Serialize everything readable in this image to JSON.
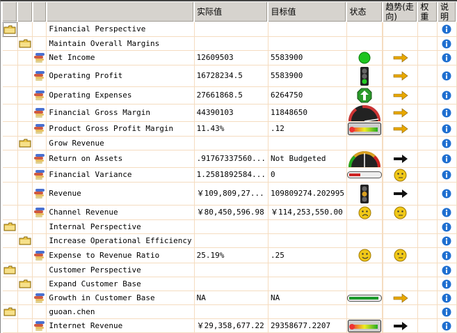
{
  "headers": {
    "actual": "实际值",
    "target": "目标值",
    "status": "状态",
    "trend": "趋势(走向)",
    "weight": "权重",
    "description": "说明"
  },
  "colors": {
    "grid": "#f5dcc0",
    "header": "#d6d3ce",
    "info": "#1f6fd0",
    "arrow_gold": "#e8a800"
  },
  "rows": [
    {
      "level": 0,
      "type": "folder",
      "name": "Financial Perspective",
      "actual": "",
      "target": "",
      "status": "",
      "trend": ""
    },
    {
      "level": 1,
      "type": "folder",
      "name": "Maintain Overall Margins",
      "actual": "",
      "target": "",
      "status": "",
      "trend": ""
    },
    {
      "level": 2,
      "type": "kpi",
      "name": "Net Income",
      "actual": "12609503",
      "target": "5583900",
      "status": "green-dot",
      "trend": "arrow-gold"
    },
    {
      "level": 2,
      "type": "kpi",
      "name": "Operating Profit",
      "actual": "16728234.5",
      "target": "5583900",
      "status": "traffic-light-green",
      "trend": "arrow-gold"
    },
    {
      "level": 2,
      "type": "kpi",
      "name": "Operating Expenses",
      "actual": "27661868.5",
      "target": "6264750",
      "status": "up-arrow-octagon",
      "trend": "arrow-gold"
    },
    {
      "level": 2,
      "type": "kpi",
      "name": "Financial Gross Margin",
      "actual": "44390103",
      "target": "11848650",
      "status": "gauge-high",
      "trend": "arrow-gold"
    },
    {
      "level": 2,
      "type": "kpi",
      "name": "Product Gross Profit Margin",
      "actual": "11.43%",
      "target": ".12",
      "status": "thermometer",
      "trend": "arrow-gold"
    },
    {
      "level": 1,
      "type": "folder",
      "name": "Grow Revenue",
      "actual": "",
      "target": "",
      "status": "",
      "trend": ""
    },
    {
      "level": 2,
      "type": "kpi",
      "name": "Return on Assets",
      "actual": ".91767337560...",
      "target": "Not Budgeted",
      "status": "gauge-mid",
      "trend": "arrow-black"
    },
    {
      "level": 2,
      "type": "kpi",
      "name": "Financial Variance",
      "actual": "1.2581892584...",
      "target": "0",
      "status": "bar-red",
      "trend": "smiley-neutral"
    },
    {
      "level": 2,
      "type": "kpi",
      "name": "Revenue",
      "actual": "￥109,809,27...",
      "target": "109809274.202995",
      "status": "traffic-light-yellow",
      "trend": "arrow-black"
    },
    {
      "level": 2,
      "type": "kpi",
      "name": "Channel Revenue",
      "actual": "￥80,450,596.98",
      "target": "￥114,253,550.00",
      "status": "smiley-sad",
      "trend": "smiley-neutral"
    },
    {
      "level": 0,
      "type": "folder",
      "name": "Internal Perspective",
      "actual": "",
      "target": "",
      "status": "",
      "trend": ""
    },
    {
      "level": 1,
      "type": "folder",
      "name": "Increase Operational Efficiency",
      "actual": "",
      "target": "",
      "status": "",
      "trend": ""
    },
    {
      "level": 2,
      "type": "kpi",
      "name": "Expense to Revenue Ratio",
      "actual": "25.19%",
      "target": ".25",
      "status": "smiley-happy",
      "trend": "smiley-neutral"
    },
    {
      "level": 0,
      "type": "folder",
      "name": "Customer Perspective",
      "actual": "",
      "target": "",
      "status": "",
      "trend": ""
    },
    {
      "level": 1,
      "type": "folder",
      "name": "Expand Customer Base",
      "actual": "",
      "target": "",
      "status": "",
      "trend": ""
    },
    {
      "level": 2,
      "type": "kpi",
      "name": "Growth in Customer Base",
      "actual": "NA",
      "target": "NA",
      "status": "bar-green",
      "trend": "arrow-gold"
    },
    {
      "level": 0,
      "type": "folder",
      "name": "guoan.chen",
      "actual": "",
      "target": "",
      "status": "",
      "trend": ""
    },
    {
      "level": 2,
      "type": "kpi",
      "name": "Internet Revenue",
      "actual": "￥29,358,677.22",
      "target": "29358677.2207",
      "status": "thermometer",
      "trend": "arrow-black"
    }
  ]
}
